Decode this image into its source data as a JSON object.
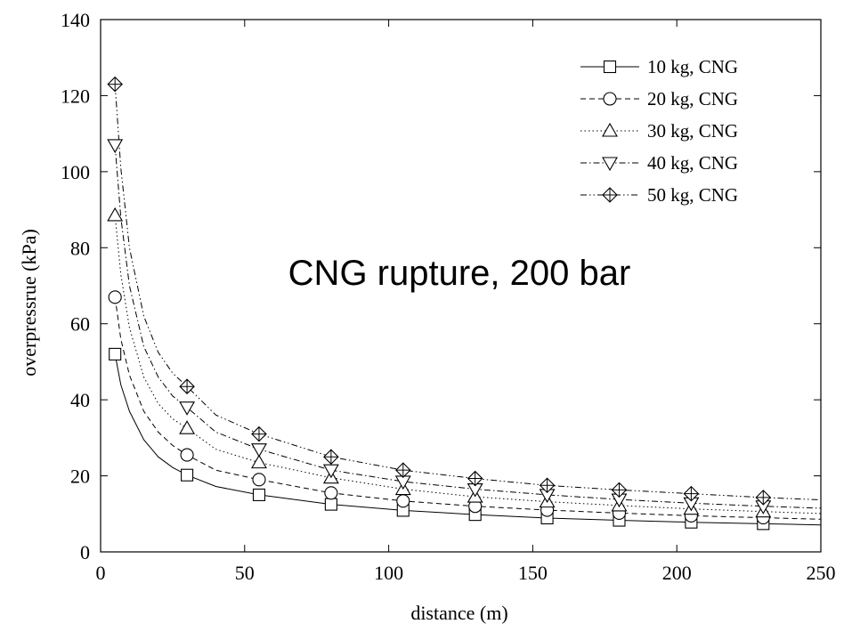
{
  "chart_data": {
    "type": "line",
    "title": "",
    "annotation": "CNG rupture, 200 bar",
    "xlabel": "distance (m)",
    "ylabel": "overpressrue (kPa)",
    "xlim": [
      0,
      250
    ],
    "ylim": [
      0,
      140
    ],
    "xticks": [
      "0",
      "50",
      "100",
      "150",
      "200",
      "250"
    ],
    "yticks": [
      "0",
      "20",
      "40",
      "60",
      "80",
      "100",
      "120",
      "140"
    ],
    "grid": false,
    "legend_position": "top-right",
    "marker_x": [
      5,
      30,
      55,
      80,
      105,
      130,
      155,
      180,
      205,
      230
    ],
    "series": [
      {
        "name": "10 kg, CNG",
        "marker": "square",
        "dash": "solid",
        "markers_y": [
          52,
          20.2,
          15,
          12.5,
          10.9,
          9.8,
          8.9,
          8.3,
          7.8,
          7.4
        ],
        "curve": [
          [
            5,
            52
          ],
          [
            7,
            44
          ],
          [
            10,
            37
          ],
          [
            15,
            29.5
          ],
          [
            20,
            25
          ],
          [
            25,
            22.2
          ],
          [
            30,
            20.2
          ],
          [
            40,
            17.2
          ],
          [
            55,
            15
          ],
          [
            80,
            12.5
          ],
          [
            105,
            10.9
          ],
          [
            130,
            9.8
          ],
          [
            155,
            8.9
          ],
          [
            180,
            8.3
          ],
          [
            205,
            7.8
          ],
          [
            230,
            7.4
          ],
          [
            250,
            7.1
          ]
        ]
      },
      {
        "name": "20 kg, CNG",
        "marker": "circle",
        "dash": "dashed",
        "markers_y": [
          67,
          25.5,
          19,
          15.5,
          13.4,
          12,
          11,
          10.2,
          9.5,
          9
        ],
        "curve": [
          [
            5,
            67
          ],
          [
            7,
            56
          ],
          [
            10,
            46.5
          ],
          [
            15,
            37
          ],
          [
            20,
            31.5
          ],
          [
            25,
            28
          ],
          [
            30,
            25.5
          ],
          [
            40,
            21.5
          ],
          [
            55,
            19
          ],
          [
            80,
            15.5
          ],
          [
            105,
            13.4
          ],
          [
            130,
            12
          ],
          [
            155,
            11
          ],
          [
            180,
            10.2
          ],
          [
            205,
            9.5
          ],
          [
            230,
            9
          ],
          [
            250,
            8.6
          ]
        ]
      },
      {
        "name": "30 kg, CNG",
        "marker": "triangle-up",
        "dash": "dotted",
        "markers_y": [
          88.5,
          32.5,
          23.5,
          19.5,
          16.5,
          14.5,
          13.2,
          12.2,
          11.3,
          10.6
        ],
        "curve": [
          [
            5,
            88.5
          ],
          [
            7,
            73
          ],
          [
            10,
            59
          ],
          [
            15,
            46
          ],
          [
            20,
            39
          ],
          [
            25,
            35
          ],
          [
            30,
            32.5
          ],
          [
            40,
            27
          ],
          [
            55,
            23.5
          ],
          [
            80,
            19.5
          ],
          [
            105,
            16.5
          ],
          [
            130,
            14.5
          ],
          [
            155,
            13.2
          ],
          [
            180,
            12.2
          ],
          [
            205,
            11.3
          ],
          [
            230,
            10.6
          ],
          [
            250,
            10.1
          ]
        ]
      },
      {
        "name": "40 kg, CNG",
        "marker": "triangle-down",
        "dash": "dashdot",
        "markers_y": [
          107,
          38,
          27,
          21.5,
          18.5,
          16.5,
          15,
          13.8,
          12.8,
          12
        ],
        "curve": [
          [
            5,
            107
          ],
          [
            7,
            88
          ],
          [
            10,
            70
          ],
          [
            15,
            54
          ],
          [
            20,
            46
          ],
          [
            25,
            41
          ],
          [
            30,
            38
          ],
          [
            40,
            31.5
          ],
          [
            55,
            27
          ],
          [
            80,
            21.5
          ],
          [
            105,
            18.5
          ],
          [
            130,
            16.5
          ],
          [
            155,
            15
          ],
          [
            180,
            13.8
          ],
          [
            205,
            12.8
          ],
          [
            230,
            12
          ],
          [
            250,
            11.5
          ]
        ]
      },
      {
        "name": "50 kg, CNG",
        "marker": "diamond-cross",
        "dash": "dashdotdot",
        "markers_y": [
          123,
          43.5,
          31,
          25,
          21.5,
          19.3,
          17.5,
          16.3,
          15.3,
          14.3
        ],
        "curve": [
          [
            5,
            123
          ],
          [
            7,
            101
          ],
          [
            10,
            80
          ],
          [
            15,
            62
          ],
          [
            20,
            52.5
          ],
          [
            25,
            47
          ],
          [
            30,
            43.5
          ],
          [
            40,
            36
          ],
          [
            55,
            31
          ],
          [
            80,
            25
          ],
          [
            105,
            21.5
          ],
          [
            130,
            19.3
          ],
          [
            155,
            17.5
          ],
          [
            180,
            16.3
          ],
          [
            205,
            15.3
          ],
          [
            230,
            14.3
          ],
          [
            250,
            13.7
          ]
        ]
      }
    ]
  }
}
